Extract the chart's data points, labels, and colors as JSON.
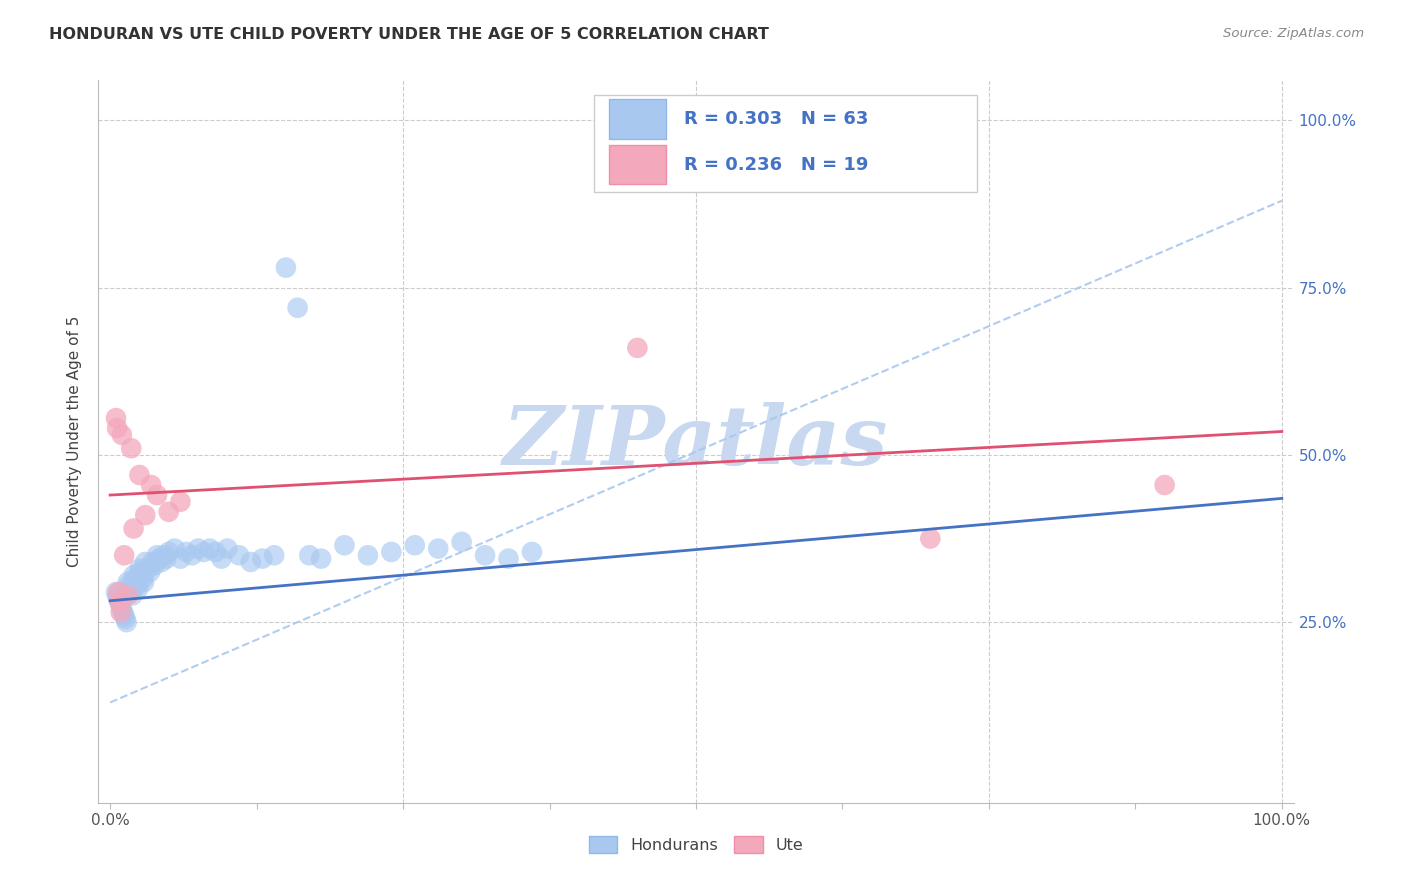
{
  "title": "HONDURAN VS UTE CHILD POVERTY UNDER THE AGE OF 5 CORRELATION CHART",
  "source": "Source: ZipAtlas.com",
  "ylabel": "Child Poverty Under the Age of 5",
  "blue_R": 0.303,
  "blue_N": 63,
  "pink_R": 0.236,
  "pink_N": 19,
  "blue_color": "#A8C8F0",
  "pink_color": "#F4A8BC",
  "blue_line_color": "#4472C4",
  "pink_line_color": "#E05070",
  "dash_line_color": "#A8C8F0",
  "watermark_text": "ZIPatlas",
  "watermark_color": "#C8D8F0",
  "blue_x": [
    0.005,
    0.006,
    0.007,
    0.008,
    0.009,
    0.01,
    0.011,
    0.012,
    0.013,
    0.014,
    0.015,
    0.016,
    0.017,
    0.018,
    0.019,
    0.02,
    0.021,
    0.022,
    0.023,
    0.024,
    0.025,
    0.026,
    0.027,
    0.028,
    0.029,
    0.03,
    0.032,
    0.034,
    0.036,
    0.038,
    0.04,
    0.042,
    0.044,
    0.046,
    0.048,
    0.05,
    0.055,
    0.06,
    0.065,
    0.07,
    0.075,
    0.08,
    0.085,
    0.09,
    0.095,
    0.1,
    0.11,
    0.12,
    0.13,
    0.14,
    0.15,
    0.16,
    0.17,
    0.18,
    0.2,
    0.22,
    0.24,
    0.26,
    0.28,
    0.3,
    0.32,
    0.34,
    0.36
  ],
  "blue_y": [
    0.295,
    0.29,
    0.285,
    0.28,
    0.275,
    0.27,
    0.265,
    0.26,
    0.255,
    0.25,
    0.31,
    0.305,
    0.3,
    0.295,
    0.29,
    0.32,
    0.315,
    0.31,
    0.305,
    0.3,
    0.33,
    0.325,
    0.32,
    0.315,
    0.31,
    0.34,
    0.33,
    0.325,
    0.34,
    0.335,
    0.35,
    0.345,
    0.34,
    0.35,
    0.345,
    0.355,
    0.36,
    0.345,
    0.355,
    0.35,
    0.36,
    0.355,
    0.36,
    0.355,
    0.345,
    0.36,
    0.35,
    0.34,
    0.345,
    0.35,
    0.78,
    0.72,
    0.35,
    0.345,
    0.365,
    0.35,
    0.355,
    0.365,
    0.36,
    0.37,
    0.35,
    0.345,
    0.355
  ],
  "pink_x": [
    0.005,
    0.006,
    0.007,
    0.008,
    0.009,
    0.01,
    0.012,
    0.015,
    0.018,
    0.02,
    0.025,
    0.03,
    0.035,
    0.04,
    0.05,
    0.06,
    0.45,
    0.7,
    0.9
  ],
  "pink_y": [
    0.555,
    0.54,
    0.295,
    0.28,
    0.265,
    0.53,
    0.35,
    0.29,
    0.51,
    0.39,
    0.47,
    0.41,
    0.455,
    0.44,
    0.415,
    0.43,
    0.66,
    0.375,
    0.455
  ],
  "blue_line_x0": 0.0,
  "blue_line_y0": 0.282,
  "blue_line_x1": 1.0,
  "blue_line_y1": 0.435,
  "pink_line_x0": 0.0,
  "pink_line_y0": 0.44,
  "pink_line_x1": 1.0,
  "pink_line_y1": 0.535,
  "dash_line_x0": 0.0,
  "dash_line_y0": 0.13,
  "dash_line_x1": 1.0,
  "dash_line_y1": 0.88,
  "xlim": [
    -0.01,
    1.01
  ],
  "ylim": [
    -0.02,
    1.06
  ],
  "grid_vals": [
    0.25,
    0.5,
    0.75,
    1.0
  ]
}
